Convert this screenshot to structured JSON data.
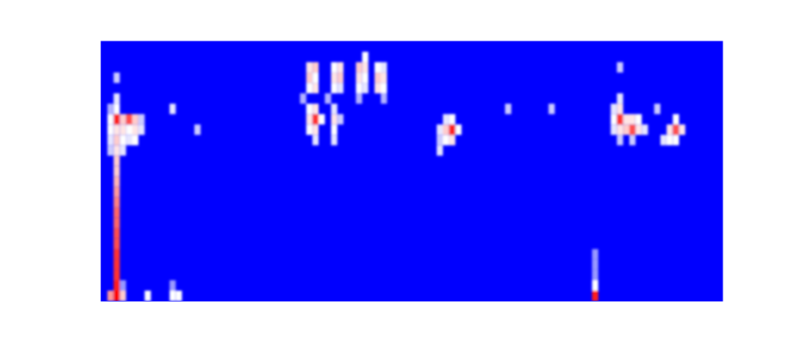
{
  "chart_data": {
    "type": "heatmap",
    "xlim": [
      0,
      100
    ],
    "ylim": [
      0,
      100
    ],
    "tick_labels": false,
    "cell_width": 1,
    "cell_height": 4,
    "color_range": [
      0,
      1
    ],
    "cells": [
      {
        "x": 2,
        "y": 0,
        "value": 1.0
      },
      {
        "x": 2,
        "y": 4,
        "value": 0.95
      },
      {
        "x": 2,
        "y": 8,
        "value": 0.9
      },
      {
        "x": 2,
        "y": 12,
        "value": 0.9
      },
      {
        "x": 2,
        "y": 16,
        "value": 0.9
      },
      {
        "x": 2,
        "y": 20,
        "value": 0.85
      },
      {
        "x": 2,
        "y": 24,
        "value": 0.85
      },
      {
        "x": 2,
        "y": 28,
        "value": 0.8
      },
      {
        "x": 2,
        "y": 32,
        "value": 0.8
      },
      {
        "x": 2,
        "y": 36,
        "value": 0.75
      },
      {
        "x": 2,
        "y": 40,
        "value": 0.7
      },
      {
        "x": 2,
        "y": 44,
        "value": 0.65
      },
      {
        "x": 2,
        "y": 48,
        "value": 0.6
      },
      {
        "x": 2,
        "y": 52,
        "value": 0.6
      },
      {
        "x": 2,
        "y": 56,
        "value": 0.55
      },
      {
        "x": 2,
        "y": 60,
        "value": 0.6
      },
      {
        "x": 2,
        "y": 64,
        "value": 0.55
      },
      {
        "x": 2,
        "y": 68,
        "value": 0.95
      },
      {
        "x": 2,
        "y": 72,
        "value": 0.5
      },
      {
        "x": 2,
        "y": 76,
        "value": 0.45
      },
      {
        "x": 2,
        "y": 84,
        "value": 0.4
      },
      {
        "x": 1,
        "y": 0,
        "value": 0.7
      },
      {
        "x": 1,
        "y": 56,
        "value": 0.4
      },
      {
        "x": 1,
        "y": 60,
        "value": 0.45
      },
      {
        "x": 1,
        "y": 64,
        "value": 0.5
      },
      {
        "x": 1,
        "y": 68,
        "value": 0.5
      },
      {
        "x": 1,
        "y": 72,
        "value": 0.35
      },
      {
        "x": 3,
        "y": 0,
        "value": 0.6
      },
      {
        "x": 3,
        "y": 4,
        "value": 0.3
      },
      {
        "x": 3,
        "y": 56,
        "value": 0.45
      },
      {
        "x": 3,
        "y": 60,
        "value": 0.5
      },
      {
        "x": 3,
        "y": 64,
        "value": 0.55
      },
      {
        "x": 3,
        "y": 68,
        "value": 0.6
      },
      {
        "x": 4,
        "y": 60,
        "value": 0.45
      },
      {
        "x": 4,
        "y": 64,
        "value": 0.5
      },
      {
        "x": 4,
        "y": 68,
        "value": 0.85
      },
      {
        "x": 5,
        "y": 60,
        "value": 0.5
      },
      {
        "x": 5,
        "y": 64,
        "value": 0.55
      },
      {
        "x": 5,
        "y": 68,
        "value": 0.6
      },
      {
        "x": 6,
        "y": 64,
        "value": 0.45
      },
      {
        "x": 6,
        "y": 68,
        "value": 0.4
      },
      {
        "x": 7,
        "y": 0,
        "value": 0.5
      },
      {
        "x": 11,
        "y": 0,
        "value": 0.5
      },
      {
        "x": 11,
        "y": 4,
        "value": 0.3
      },
      {
        "x": 11,
        "y": 72,
        "value": 0.45
      },
      {
        "x": 12,
        "y": 0,
        "value": 0.5
      },
      {
        "x": 15,
        "y": 64,
        "value": 0.4
      },
      {
        "x": 33,
        "y": 80,
        "value": 0.5
      },
      {
        "x": 33,
        "y": 84,
        "value": 0.6
      },
      {
        "x": 33,
        "y": 88,
        "value": 0.55
      },
      {
        "x": 34,
        "y": 80,
        "value": 0.55
      },
      {
        "x": 34,
        "y": 84,
        "value": 0.5
      },
      {
        "x": 34,
        "y": 88,
        "value": 0.6
      },
      {
        "x": 37,
        "y": 80,
        "value": 0.5
      },
      {
        "x": 37,
        "y": 84,
        "value": 0.55
      },
      {
        "x": 37,
        "y": 88,
        "value": 0.5
      },
      {
        "x": 38,
        "y": 80,
        "value": 0.45
      },
      {
        "x": 38,
        "y": 84,
        "value": 0.6
      },
      {
        "x": 38,
        "y": 88,
        "value": 0.55
      },
      {
        "x": 41,
        "y": 80,
        "value": 0.5
      },
      {
        "x": 41,
        "y": 84,
        "value": 0.55
      },
      {
        "x": 41,
        "y": 88,
        "value": 0.6
      },
      {
        "x": 42,
        "y": 80,
        "value": 0.45
      },
      {
        "x": 42,
        "y": 84,
        "value": 0.5
      },
      {
        "x": 42,
        "y": 88,
        "value": 0.55
      },
      {
        "x": 42,
        "y": 92,
        "value": 0.5
      },
      {
        "x": 44,
        "y": 80,
        "value": 0.55
      },
      {
        "x": 44,
        "y": 84,
        "value": 0.6
      },
      {
        "x": 44,
        "y": 88,
        "value": 0.5
      },
      {
        "x": 45,
        "y": 80,
        "value": 0.5
      },
      {
        "x": 45,
        "y": 84,
        "value": 0.55
      },
      {
        "x": 45,
        "y": 88,
        "value": 0.45
      },
      {
        "x": 32,
        "y": 76,
        "value": 0.35
      },
      {
        "x": 36,
        "y": 76,
        "value": 0.35
      },
      {
        "x": 41,
        "y": 76,
        "value": 0.35
      },
      {
        "x": 45,
        "y": 76,
        "value": 0.35
      },
      {
        "x": 33,
        "y": 64,
        "value": 0.5
      },
      {
        "x": 33,
        "y": 68,
        "value": 0.55
      },
      {
        "x": 33,
        "y": 72,
        "value": 0.5
      },
      {
        "x": 34,
        "y": 60,
        "value": 0.45
      },
      {
        "x": 34,
        "y": 64,
        "value": 0.55
      },
      {
        "x": 34,
        "y": 68,
        "value": 0.9
      },
      {
        "x": 34,
        "y": 72,
        "value": 0.55
      },
      {
        "x": 35,
        "y": 68,
        "value": 0.5
      },
      {
        "x": 37,
        "y": 60,
        "value": 0.45
      },
      {
        "x": 37,
        "y": 64,
        "value": 0.5
      },
      {
        "x": 37,
        "y": 68,
        "value": 0.55
      },
      {
        "x": 37,
        "y": 72,
        "value": 0.45
      },
      {
        "x": 38,
        "y": 68,
        "value": 0.4
      },
      {
        "x": 54,
        "y": 56,
        "value": 0.45
      },
      {
        "x": 54,
        "y": 60,
        "value": 0.4
      },
      {
        "x": 54,
        "y": 64,
        "value": 0.45
      },
      {
        "x": 55,
        "y": 60,
        "value": 0.5
      },
      {
        "x": 55,
        "y": 64,
        "value": 0.6
      },
      {
        "x": 55,
        "y": 68,
        "value": 0.45
      },
      {
        "x": 56,
        "y": 60,
        "value": 0.55
      },
      {
        "x": 56,
        "y": 64,
        "value": 0.95
      },
      {
        "x": 56,
        "y": 68,
        "value": 0.5
      },
      {
        "x": 57,
        "y": 64,
        "value": 0.5
      },
      {
        "x": 65,
        "y": 72,
        "value": 0.4
      },
      {
        "x": 72,
        "y": 72,
        "value": 0.4
      },
      {
        "x": 89,
        "y": 72,
        "value": 0.4
      },
      {
        "x": 83,
        "y": 88,
        "value": 0.4
      },
      {
        "x": 79,
        "y": 0,
        "value": 0.95
      },
      {
        "x": 79,
        "y": 4,
        "value": 0.5
      },
      {
        "x": 79,
        "y": 8,
        "value": 0.3
      },
      {
        "x": 79,
        "y": 12,
        "value": 0.3
      },
      {
        "x": 79,
        "y": 16,
        "value": 0.3
      },
      {
        "x": 82,
        "y": 64,
        "value": 0.45
      },
      {
        "x": 82,
        "y": 68,
        "value": 0.5
      },
      {
        "x": 82,
        "y": 72,
        "value": 0.45
      },
      {
        "x": 83,
        "y": 60,
        "value": 0.4
      },
      {
        "x": 83,
        "y": 64,
        "value": 0.55
      },
      {
        "x": 83,
        "y": 68,
        "value": 0.9
      },
      {
        "x": 83,
        "y": 72,
        "value": 0.55
      },
      {
        "x": 83,
        "y": 76,
        "value": 0.45
      },
      {
        "x": 84,
        "y": 64,
        "value": 0.6
      },
      {
        "x": 84,
        "y": 68,
        "value": 0.55
      },
      {
        "x": 85,
        "y": 60,
        "value": 0.4
      },
      {
        "x": 85,
        "y": 64,
        "value": 0.85
      },
      {
        "x": 85,
        "y": 68,
        "value": 0.55
      },
      {
        "x": 86,
        "y": 64,
        "value": 0.55
      },
      {
        "x": 86,
        "y": 68,
        "value": 0.5
      },
      {
        "x": 87,
        "y": 64,
        "value": 0.45
      },
      {
        "x": 90,
        "y": 60,
        "value": 0.45
      },
      {
        "x": 91,
        "y": 60,
        "value": 0.5
      },
      {
        "x": 91,
        "y": 64,
        "value": 0.55
      },
      {
        "x": 92,
        "y": 60,
        "value": 0.5
      },
      {
        "x": 92,
        "y": 64,
        "value": 0.85
      },
      {
        "x": 92,
        "y": 68,
        "value": 0.5
      },
      {
        "x": 93,
        "y": 64,
        "value": 0.55
      }
    ]
  }
}
